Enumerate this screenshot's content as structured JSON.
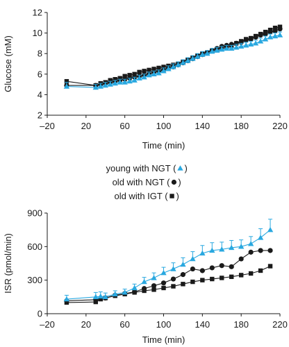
{
  "colors": {
    "young": "#29a8e0",
    "old_ngt": "#1a1a1a",
    "old_igt": "#1a1a1a",
    "axis": "#1a1a1a"
  },
  "legend": {
    "items": [
      {
        "label": "young with NGT (",
        "marker": "triangle",
        "close": ")"
      },
      {
        "label": "old with NGT (",
        "marker": "circle",
        "close": ")"
      },
      {
        "label": "old with IGT (",
        "marker": "square",
        "close": ")"
      }
    ]
  },
  "chart_data": [
    {
      "type": "line",
      "xlabel": "Time (min)",
      "ylabel": "Glucose (mM)",
      "xlim": [
        -20,
        220
      ],
      "ylim": [
        2,
        12
      ],
      "xticks": [
        "–20",
        "20",
        "60",
        "100",
        "140",
        "180",
        "220"
      ],
      "xtick_values": [
        -20,
        20,
        60,
        100,
        140,
        180,
        220
      ],
      "yticks": [
        "2",
        "4",
        "6",
        "8",
        "10",
        "12"
      ],
      "ytick_values": [
        2,
        4,
        6,
        8,
        10,
        12
      ],
      "series": [
        {
          "key": "young",
          "marker": "triangle",
          "x": [
            0,
            30,
            35,
            40,
            45,
            50,
            55,
            60,
            65,
            70,
            75,
            80,
            85,
            90,
            95,
            100,
            105,
            110,
            115,
            120,
            125,
            130,
            135,
            140,
            145,
            150,
            155,
            160,
            165,
            170,
            175,
            180,
            185,
            190,
            195,
            200,
            205,
            210,
            215,
            220
          ],
          "y": [
            4.8,
            4.7,
            4.8,
            4.9,
            5.0,
            5.1,
            5.2,
            5.2,
            5.3,
            5.4,
            5.6,
            5.7,
            5.9,
            6.0,
            6.1,
            6.3,
            6.5,
            6.7,
            6.9,
            7.1,
            7.3,
            7.5,
            7.7,
            7.9,
            8.0,
            8.2,
            8.3,
            8.4,
            8.5,
            8.5,
            8.6,
            8.7,
            8.8,
            8.9,
            9.0,
            9.2,
            9.4,
            9.6,
            9.7,
            9.8
          ],
          "err": [
            0.4,
            0.3,
            0.3,
            0.3,
            0.3,
            0.3,
            0.3,
            0.3,
            0.3,
            0.3,
            0.3,
            0.3,
            0.3,
            0.3,
            0.3,
            0.3,
            0.3,
            0.3,
            0.3,
            0.3,
            0.3,
            0.3,
            0.3,
            0.3,
            0.3,
            0.3,
            0.3,
            0.3,
            0.3,
            0.3,
            0.3,
            0.3,
            0.3,
            0.3,
            0.3,
            0.3,
            0.3,
            0.3,
            0.3,
            0.3
          ]
        },
        {
          "key": "old_ngt",
          "marker": "circle",
          "x": [
            0,
            30,
            35,
            40,
            45,
            50,
            55,
            60,
            65,
            70,
            75,
            80,
            85,
            90,
            95,
            100,
            105,
            110,
            115,
            120,
            125,
            130,
            135,
            140,
            145,
            150,
            155,
            160,
            165,
            170,
            175,
            180,
            185,
            190,
            195,
            200,
            205,
            210,
            215,
            220
          ],
          "y": [
            4.9,
            4.9,
            5.0,
            5.1,
            5.2,
            5.3,
            5.4,
            5.5,
            5.6,
            5.7,
            5.8,
            5.9,
            6.0,
            6.2,
            6.3,
            6.4,
            6.6,
            6.7,
            6.9,
            7.1,
            7.3,
            7.5,
            7.7,
            7.9,
            8.1,
            8.3,
            8.5,
            8.7,
            8.8,
            8.9,
            9.0,
            9.1,
            9.3,
            9.4,
            9.6,
            9.8,
            9.9,
            10.1,
            10.2,
            10.4
          ]
        },
        {
          "key": "old_igt",
          "marker": "square",
          "x": [
            0,
            30,
            35,
            40,
            45,
            50,
            55,
            60,
            65,
            70,
            75,
            80,
            85,
            90,
            95,
            100,
            105,
            110,
            115,
            120,
            125,
            130,
            135,
            140,
            145,
            150,
            155,
            160,
            165,
            170,
            175,
            180,
            185,
            190,
            195,
            200,
            205,
            210,
            215,
            220
          ],
          "y": [
            5.3,
            4.9,
            5.1,
            5.2,
            5.4,
            5.5,
            5.6,
            5.8,
            5.9,
            6.0,
            6.2,
            6.3,
            6.4,
            6.5,
            6.6,
            6.7,
            6.8,
            6.9,
            7.0,
            7.2,
            7.4,
            7.6,
            7.8,
            8.0,
            8.1,
            8.3,
            8.4,
            8.6,
            8.7,
            8.8,
            9.0,
            9.2,
            9.4,
            9.5,
            9.7,
            9.9,
            10.1,
            10.3,
            10.5,
            10.6
          ]
        }
      ]
    },
    {
      "type": "line",
      "xlabel": "Time (min)",
      "ylabel": "ISR (pmol/min)",
      "xlim": [
        -20,
        220
      ],
      "ylim": [
        0,
        900
      ],
      "xticks": [
        "–20",
        "20",
        "60",
        "100",
        "140",
        "180",
        "220"
      ],
      "xtick_values": [
        -20,
        20,
        60,
        100,
        140,
        180,
        220
      ],
      "yticks": [
        "0",
        "300",
        "600",
        "900"
      ],
      "ytick_values": [
        0,
        300,
        600,
        900
      ],
      "series": [
        {
          "key": "young",
          "marker": "triangle",
          "x": [
            0,
            30,
            35,
            40,
            50,
            60,
            70,
            80,
            90,
            100,
            110,
            120,
            130,
            140,
            150,
            160,
            170,
            180,
            190,
            200,
            210
          ],
          "y": [
            130,
            150,
            155,
            150,
            175,
            190,
            230,
            285,
            320,
            365,
            400,
            440,
            490,
            540,
            565,
            575,
            590,
            600,
            625,
            680,
            750
          ],
          "err": [
            35,
            40,
            40,
            35,
            30,
            30,
            35,
            40,
            45,
            50,
            55,
            60,
            65,
            70,
            70,
            65,
            65,
            60,
            65,
            80,
            95
          ]
        },
        {
          "key": "old_ngt",
          "marker": "circle",
          "x": [
            0,
            30,
            35,
            40,
            50,
            60,
            70,
            80,
            90,
            100,
            110,
            120,
            130,
            140,
            150,
            160,
            170,
            180,
            190,
            200,
            210
          ],
          "y": [
            115,
            125,
            135,
            140,
            165,
            180,
            195,
            225,
            250,
            275,
            310,
            350,
            400,
            385,
            410,
            430,
            420,
            490,
            550,
            565,
            565
          ]
        },
        {
          "key": "old_igt",
          "marker": "square",
          "x": [
            0,
            30,
            35,
            40,
            50,
            60,
            70,
            80,
            90,
            100,
            110,
            120,
            130,
            140,
            150,
            160,
            170,
            180,
            190,
            200,
            210
          ],
          "y": [
            100,
            105,
            130,
            140,
            160,
            175,
            190,
            205,
            215,
            230,
            245,
            265,
            285,
            300,
            310,
            320,
            330,
            345,
            360,
            385,
            425
          ]
        }
      ]
    }
  ]
}
